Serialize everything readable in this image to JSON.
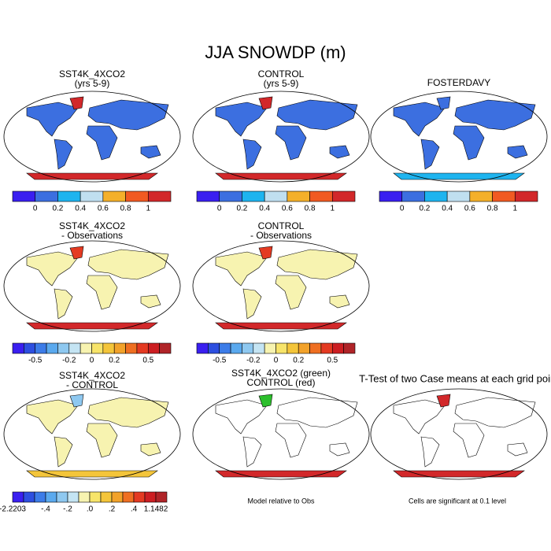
{
  "title": "JJA SNOWDP (m)",
  "panels": [
    {
      "title": [
        "SST4K_4XCO2",
        "(yrs 5-9)"
      ]
    },
    {
      "title": [
        "CONTROL",
        "(yrs 5-9)"
      ]
    },
    {
      "title": [
        "FOSTERDAVY"
      ]
    },
    {
      "title": [
        "SST4K_4XCO2",
        "- Observations"
      ]
    },
    {
      "title": [
        "CONTROL",
        "- Observations"
      ]
    },
    {
      "title": [
        "SST4K_4XCO2",
        "- CONTROL"
      ]
    },
    {
      "title": [
        "SST4K_4XCO2 (green)",
        "CONTROL (red)"
      ]
    },
    {
      "title": [
        "T-Test of two Case means at each grid point"
      ]
    }
  ],
  "colorbars": [
    {
      "colors": [
        "#3a1ff0",
        "#3c6fe0",
        "#1eb4ef",
        "#c0dff0",
        "#f4b02a",
        "#f15a22",
        "#d2282a"
      ],
      "labels": [
        null,
        "0",
        "0.2",
        "0.4",
        "0.6",
        "0.8",
        "1",
        null
      ]
    },
    {
      "colors": [
        "#3a1ff0",
        "#3c6fe0",
        "#1eb4ef",
        "#c0dff0",
        "#f4b02a",
        "#f15a22",
        "#d2282a"
      ],
      "labels": [
        null,
        "0",
        "0.2",
        "0.4",
        "0.6",
        "0.8",
        "1",
        null
      ]
    },
    {
      "colors": [
        "#3a1ff0",
        "#3c6fe0",
        "#1eb4ef",
        "#c0dff0",
        "#f4b02a",
        "#f15a22",
        "#d2282a"
      ],
      "labels": [
        null,
        "0",
        "0.2",
        "0.4",
        "0.6",
        "0.8",
        "1",
        null
      ]
    },
    {
      "colors": [
        "#3a1ff0",
        "#2d4fe0",
        "#3c7ce8",
        "#5aa9ee",
        "#8ec8f0",
        "#c4e4f3",
        "#f7f3b0",
        "#f7e46a",
        "#f4c53a",
        "#f2a22a",
        "#ef6f22",
        "#e43a22",
        "#cc1e22",
        "#b02428"
      ],
      "labels": [
        null,
        null,
        "-0.5",
        null,
        null,
        "-0.2",
        null,
        "0",
        null,
        "0.2",
        null,
        null,
        "0.5",
        null,
        null
      ]
    },
    {
      "colors": [
        "#3a1ff0",
        "#2d4fe0",
        "#3c7ce8",
        "#5aa9ee",
        "#8ec8f0",
        "#c4e4f3",
        "#f7f3b0",
        "#f7e46a",
        "#f4c53a",
        "#f2a22a",
        "#ef6f22",
        "#e43a22",
        "#cc1e22",
        "#b02428"
      ],
      "labels": [
        null,
        null,
        "-0.5",
        null,
        null,
        "-0.2",
        null,
        "0",
        null,
        "0.2",
        null,
        null,
        "0.5",
        null,
        null
      ]
    },
    {
      "colors": [
        "#3a1ff0",
        "#2d4fe0",
        "#3c7ce8",
        "#5aa9ee",
        "#8ec8f0",
        "#c4e4f3",
        "#f7f3b0",
        "#f7e46a",
        "#f4c53a",
        "#f2a22a",
        "#ef6f22",
        "#e43a22",
        "#cc1e22",
        "#b02428"
      ],
      "labels": [
        "-2.2203",
        null,
        null,
        "-.4",
        null,
        "-.2",
        null,
        ".0",
        null,
        ".2",
        null,
        ".4",
        null,
        "1.1482",
        null
      ]
    }
  ],
  "notes": [
    "Model relative to Obs",
    "Cells are significant at 0.1 level"
  ]
}
